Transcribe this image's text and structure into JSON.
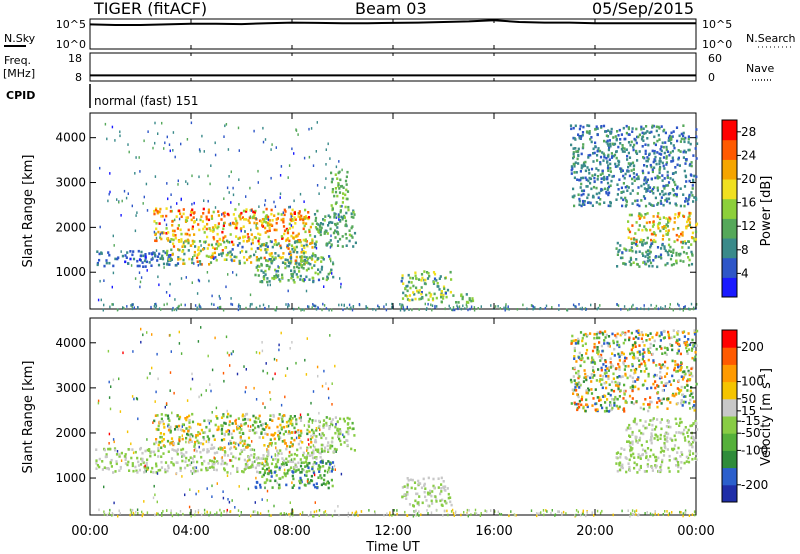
{
  "header": {
    "radar": "TIGER (fitACF)",
    "beam": "Beam 03",
    "date": "05/Sep/2015"
  },
  "time_axis": {
    "labels": [
      "00:00",
      "04:00",
      "08:00",
      "12:00",
      "16:00",
      "20:00",
      "00:00"
    ],
    "hours": [
      0,
      4,
      8,
      12,
      16,
      20,
      24
    ],
    "title": "Time UT"
  },
  "sky_panel": {
    "left_label": "N.Sky",
    "left_ticks": [
      "10^5",
      "10^0"
    ],
    "right_ticks": [
      "10^5",
      "10^0"
    ],
    "right_label": "N.Search",
    "trace_hours": [
      0,
      1,
      2,
      3,
      4,
      5,
      6,
      7,
      8,
      9,
      10,
      11,
      12,
      13,
      14,
      15,
      16,
      17,
      18,
      19,
      20,
      21,
      22,
      23,
      24
    ],
    "trace_level": [
      0.82,
      0.8,
      0.8,
      0.82,
      0.84,
      0.84,
      0.83,
      0.86,
      0.88,
      0.87,
      0.86,
      0.86,
      0.87,
      0.88,
      0.9,
      0.92,
      0.96,
      0.9,
      0.88,
      0.88,
      0.86,
      0.86,
      0.86,
      0.86,
      0.86
    ]
  },
  "freq_panel": {
    "left_label_1": "Freq.",
    "left_label_2": "[MHz]",
    "left_ticks": [
      "18",
      "8"
    ],
    "right_ticks": [
      "60",
      "0"
    ],
    "right_label": "Nave",
    "freq_mhz": 10,
    "freq_range": [
      8,
      18
    ]
  },
  "cpid_panel": {
    "label": "CPID",
    "mode": "normal (fast) 151"
  },
  "chart_data": [
    {
      "type": "heatmap",
      "name": "power",
      "ylabel": "Slant Range [km]",
      "xlabel": "",
      "yticks": [
        1000,
        2000,
        3000,
        4000
      ],
      "ylim": [
        180,
        4550
      ],
      "xlim": [
        0,
        24
      ],
      "colorbar": {
        "label": "Power [dB]",
        "ticks": [
          "4",
          "8",
          "12",
          "16",
          "20",
          "24",
          "28"
        ],
        "range": [
          0,
          30
        ],
        "colors": [
          "#1a1aff",
          "#2e56c8",
          "#3a8a8a",
          "#55a85a",
          "#8ccf3a",
          "#f0e020",
          "#f5a500",
          "#ff5a00",
          "#ff0000"
        ]
      },
      "regions": [
        {
          "t": [
            2.5,
            8.8
          ],
          "r": [
            1700,
            2450
          ],
          "v": [
            14,
            28
          ]
        },
        {
          "t": [
            0.2,
            3.5
          ],
          "r": [
            1150,
            1500
          ],
          "v": [
            3,
            10
          ]
        },
        {
          "t": [
            3.0,
            9.0
          ],
          "r": [
            1200,
            1750
          ],
          "v": [
            6,
            24
          ]
        },
        {
          "t": [
            6.5,
            9.6
          ],
          "r": [
            800,
            1400
          ],
          "v": [
            6,
            16
          ]
        },
        {
          "t": [
            8.8,
            10.5
          ],
          "r": [
            1600,
            2400
          ],
          "v": [
            8,
            14
          ]
        },
        {
          "t": [
            9.5,
            10.2
          ],
          "r": [
            2400,
            3300
          ],
          "v": [
            10,
            16
          ]
        },
        {
          "t": [
            12.3,
            14.3
          ],
          "r": [
            400,
            1050
          ],
          "v": [
            6,
            20
          ]
        },
        {
          "t": [
            13.8,
            15.2
          ],
          "r": [
            350,
            550
          ],
          "v": [
            8,
            16
          ]
        },
        {
          "t": [
            21.2,
            24
          ],
          "r": [
            1700,
            2350
          ],
          "v": [
            10,
            26
          ]
        },
        {
          "t": [
            20.8,
            24
          ],
          "r": [
            1150,
            1700
          ],
          "v": [
            6,
            14
          ]
        },
        {
          "t": [
            0.5,
            24
          ],
          "r": [
            180,
            320
          ],
          "v": [
            4,
            12
          ]
        },
        {
          "t": [
            0.3,
            10
          ],
          "r": [
            300,
            4400
          ],
          "v": [
            2,
            12
          ]
        },
        {
          "t": [
            19,
            24
          ],
          "r": [
            2500,
            4300
          ],
          "v": [
            4,
            12
          ]
        }
      ]
    },
    {
      "type": "heatmap",
      "name": "velocity",
      "ylabel": "Slant Range [km]",
      "xlabel": "Time UT",
      "yticks": [
        1000,
        2000,
        3000,
        4000
      ],
      "ylim": [
        180,
        4550
      ],
      "xlim": [
        0,
        24
      ],
      "colorbar": {
        "label": "Velocity [m s-1]",
        "ticks": [
          "200",
          "100",
          "50",
          "15",
          "-15",
          "-50",
          "-100",
          "-200"
        ],
        "range": [
          -250,
          250
        ],
        "colors": [
          "#1f2ea8",
          "#2b5fcc",
          "#2f8c3a",
          "#55b03a",
          "#88cc44",
          "#c8c8c8",
          "#f5c400",
          "#ff9a00",
          "#ff5a00",
          "#ff0000"
        ]
      },
      "regions": [
        {
          "t": [
            2.5,
            8.8
          ],
          "r": [
            1700,
            2450
          ],
          "v": [
            -120,
            150
          ]
        },
        {
          "t": [
            0.2,
            9.2
          ],
          "r": [
            1150,
            1700
          ],
          "v": [
            -20,
            20
          ]
        },
        {
          "t": [
            6.5,
            9.6
          ],
          "r": [
            800,
            1400
          ],
          "v": [
            -200,
            -20
          ]
        },
        {
          "t": [
            8.8,
            10.5
          ],
          "r": [
            1600,
            2400
          ],
          "v": [
            -60,
            40
          ]
        },
        {
          "t": [
            12.3,
            14.3
          ],
          "r": [
            400,
            1050
          ],
          "v": [
            -14,
            14
          ]
        },
        {
          "t": [
            21.2,
            24
          ],
          "r": [
            1700,
            2350
          ],
          "v": [
            -10,
            10
          ]
        },
        {
          "t": [
            20.8,
            24
          ],
          "r": [
            1150,
            1700
          ],
          "v": [
            -14,
            14
          ]
        },
        {
          "t": [
            0.5,
            24
          ],
          "r": [
            180,
            320
          ],
          "v": [
            -80,
            80
          ]
        },
        {
          "t": [
            0.3,
            10
          ],
          "r": [
            300,
            4400
          ],
          "v": [
            -220,
            220
          ]
        },
        {
          "t": [
            19,
            24
          ],
          "r": [
            2500,
            4300
          ],
          "v": [
            -200,
            200
          ]
        }
      ]
    }
  ]
}
